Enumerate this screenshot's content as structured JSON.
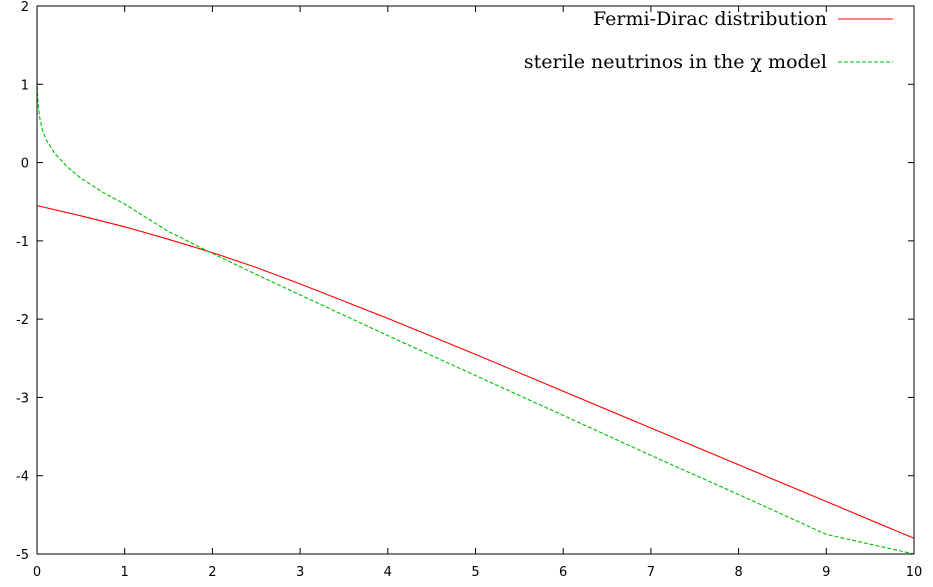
{
  "chart_data": {
    "type": "line",
    "xlim": [
      0,
      10
    ],
    "ylim": [
      -5,
      2
    ],
    "x_ticks": [
      "0",
      "1",
      "2",
      "3",
      "4",
      "5",
      "6",
      "7",
      "8",
      "9",
      "10"
    ],
    "y_ticks": [
      "-5",
      "-4",
      "-3",
      "-2",
      "-1",
      "0",
      "1",
      "2"
    ],
    "grid": false,
    "legend_position": "top-right",
    "series": [
      {
        "name": "Fermi-Dirac distribution",
        "color": "#ff0000",
        "dash": "solid",
        "x": [
          0,
          0.5,
          1,
          1.5,
          2,
          2.5,
          3,
          3.5,
          4,
          4.5,
          5,
          6,
          7,
          8,
          9,
          10
        ],
        "y": [
          -0.55,
          -0.68,
          -0.82,
          -0.98,
          -1.15,
          -1.34,
          -1.55,
          -1.77,
          -1.99,
          -2.22,
          -2.45,
          -2.92,
          -3.39,
          -3.86,
          -4.33,
          -4.8
        ]
      },
      {
        "name": "sterile neutrinos in the χ model",
        "color": "#00c000",
        "dash": "dashed",
        "x": [
          0,
          0.01,
          0.03,
          0.06,
          0.1,
          0.2,
          0.35,
          0.5,
          0.75,
          1,
          1.5,
          2,
          2.5,
          3,
          4,
          5,
          6,
          7,
          8,
          9,
          10
        ],
        "y": [
          1.05,
          0.78,
          0.58,
          0.42,
          0.3,
          0.12,
          -0.06,
          -0.2,
          -0.38,
          -0.53,
          -0.88,
          -1.16,
          -1.43,
          -1.69,
          -2.21,
          -2.72,
          -3.23,
          -3.74,
          -4.24,
          -4.75,
          -5.0
        ]
      }
    ]
  }
}
